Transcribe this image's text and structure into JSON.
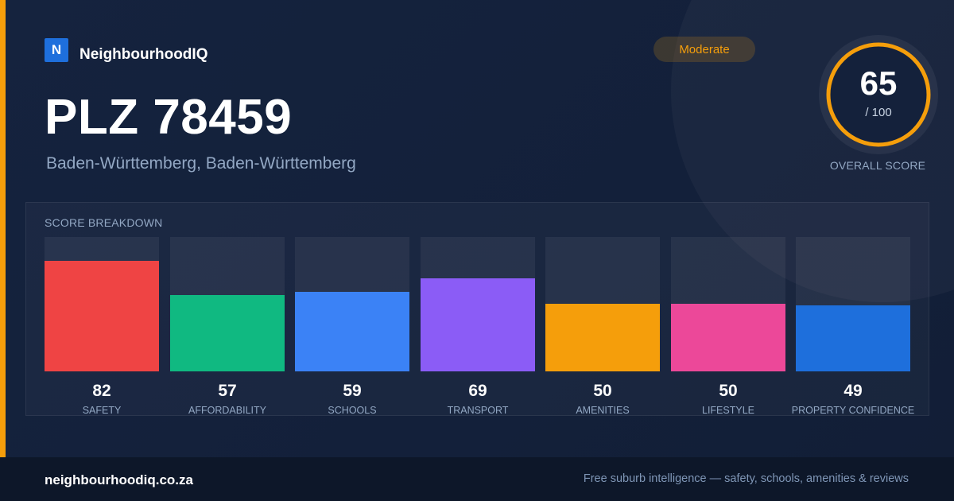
{
  "brand": {
    "logo_letter": "N",
    "name": "NeighbourhoodIQ",
    "color": "#1e6fdc"
  },
  "badge": {
    "label": "Moderate",
    "color": "#f59e0b"
  },
  "title": "PLZ 78459",
  "subtitle": "Baden-Württemberg, Baden-Württemberg",
  "overall_score": {
    "value": "65",
    "max": "/ 100",
    "fraction": 0.65,
    "caption": "OVERALL SCORE",
    "ring_color": "#f59e0b"
  },
  "breakdown": {
    "title": "SCORE BREAKDOWN",
    "items": [
      {
        "value": 82,
        "label": "SAFETY",
        "color": "#ef4444"
      },
      {
        "value": 57,
        "label": "AFFORDABILITY",
        "color": "#10b981"
      },
      {
        "value": 59,
        "label": "SCHOOLS",
        "color": "#3b82f6"
      },
      {
        "value": 69,
        "label": "TRANSPORT",
        "color": "#8b5cf6"
      },
      {
        "value": 50,
        "label": "AMENITIES",
        "color": "#f59e0b"
      },
      {
        "value": 50,
        "label": "LIFESTYLE",
        "color": "#ec4899"
      },
      {
        "value": 49,
        "label": "PROPERTY CONFIDENCE",
        "color": "#1e6fdc"
      }
    ]
  },
  "footer": {
    "url": "neighbourhoodiq.co.za",
    "tagline": "Free suburb intelligence — safety, schools, amenities & reviews"
  }
}
